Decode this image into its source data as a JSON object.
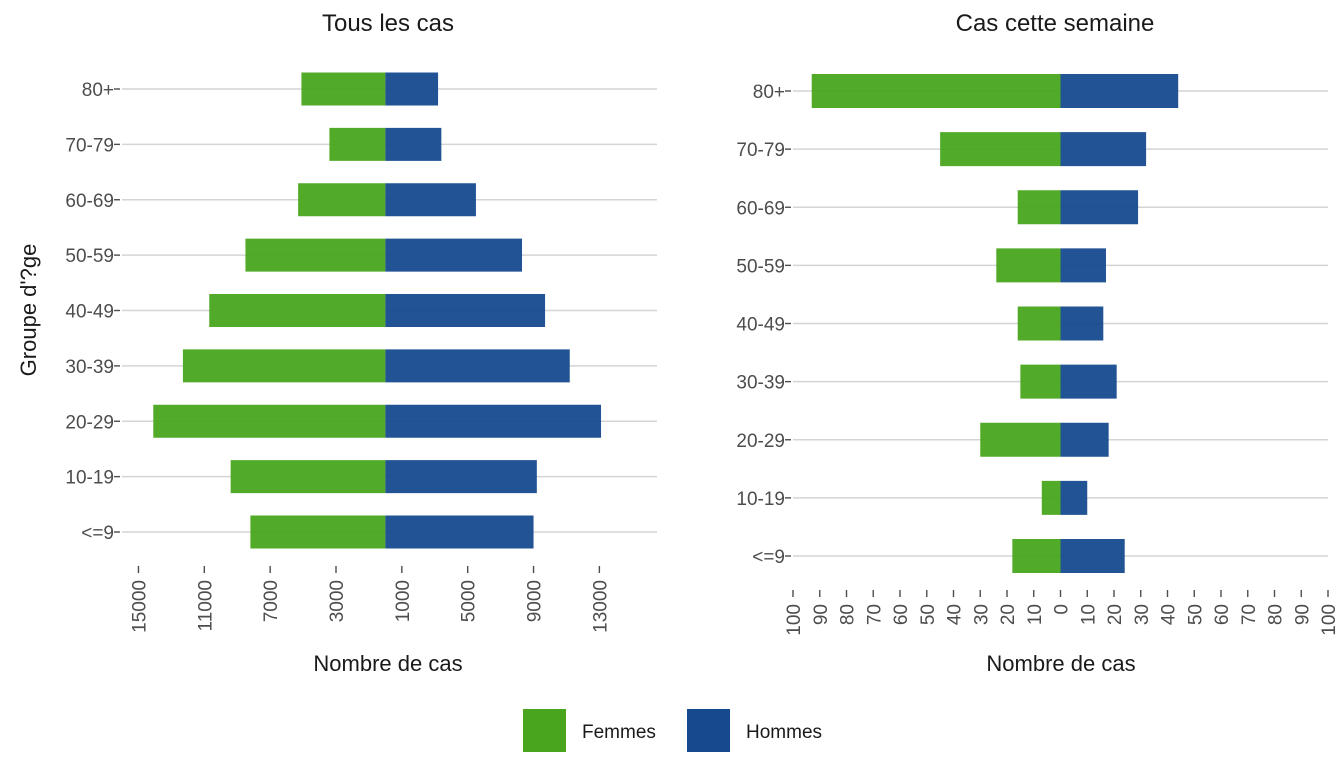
{
  "legend": {
    "items": [
      {
        "label": "Femmes",
        "color": "#49A51E"
      },
      {
        "label": "Hommes",
        "color": "#154A8F"
      }
    ]
  },
  "chart_data": [
    {
      "type": "bar",
      "orientation": "horizontal",
      "title": "Tous les cas",
      "xlabel": "Nombre de cas",
      "ylabel": "Groupe d'?ge",
      "categories": [
        "<=9",
        "10-19",
        "20-29",
        "30-39",
        "40-49",
        "50-59",
        "60-69",
        "70-79",
        "80+"
      ],
      "series": [
        {
          "name": "Femmes",
          "color": "#49A51E",
          "values": [
            -8200,
            -9400,
            -14100,
            -12300,
            -10700,
            -8500,
            -5300,
            -3400,
            -5100
          ]
        },
        {
          "name": "Hommes",
          "color": "#154A8F",
          "values": [
            9000,
            9200,
            13100,
            11200,
            9700,
            8300,
            5500,
            3400,
            3200
          ]
        }
      ],
      "xlim": [
        -16000,
        16500
      ],
      "x_ticks": [
        -15000,
        -11000,
        -7000,
        -3000,
        1000,
        5000,
        9000,
        13000
      ],
      "x_tick_labels": [
        "15000",
        "11000",
        "7000",
        "3000",
        "1000",
        "5000",
        "9000",
        "13000"
      ],
      "grid": true
    },
    {
      "type": "bar",
      "orientation": "horizontal",
      "title": "Cas cette semaine",
      "xlabel": "Nombre de cas",
      "ylabel": "",
      "categories": [
        "<=9",
        "10-19",
        "20-29",
        "30-39",
        "40-49",
        "50-59",
        "60-69",
        "70-79",
        "80+"
      ],
      "series": [
        {
          "name": "Femmes",
          "color": "#49A51E",
          "values": [
            -18,
            -7,
            -30,
            -15,
            -16,
            -24,
            -16,
            -45,
            -93
          ]
        },
        {
          "name": "Hommes",
          "color": "#154A8F",
          "values": [
            24,
            10,
            18,
            21,
            16,
            17,
            29,
            32,
            44
          ]
        }
      ],
      "xlim": [
        -100,
        100
      ],
      "x_ticks": [
        -100,
        -90,
        -80,
        -70,
        -60,
        -50,
        -40,
        -30,
        -20,
        -10,
        0,
        10,
        20,
        30,
        40,
        50,
        60,
        70,
        80,
        90,
        100
      ],
      "x_tick_labels": [
        "100",
        "90",
        "80",
        "70",
        "60",
        "50",
        "40",
        "30",
        "20",
        "10",
        "0",
        "10",
        "20",
        "30",
        "40",
        "50",
        "60",
        "70",
        "80",
        "90",
        "100"
      ],
      "grid": true
    }
  ]
}
